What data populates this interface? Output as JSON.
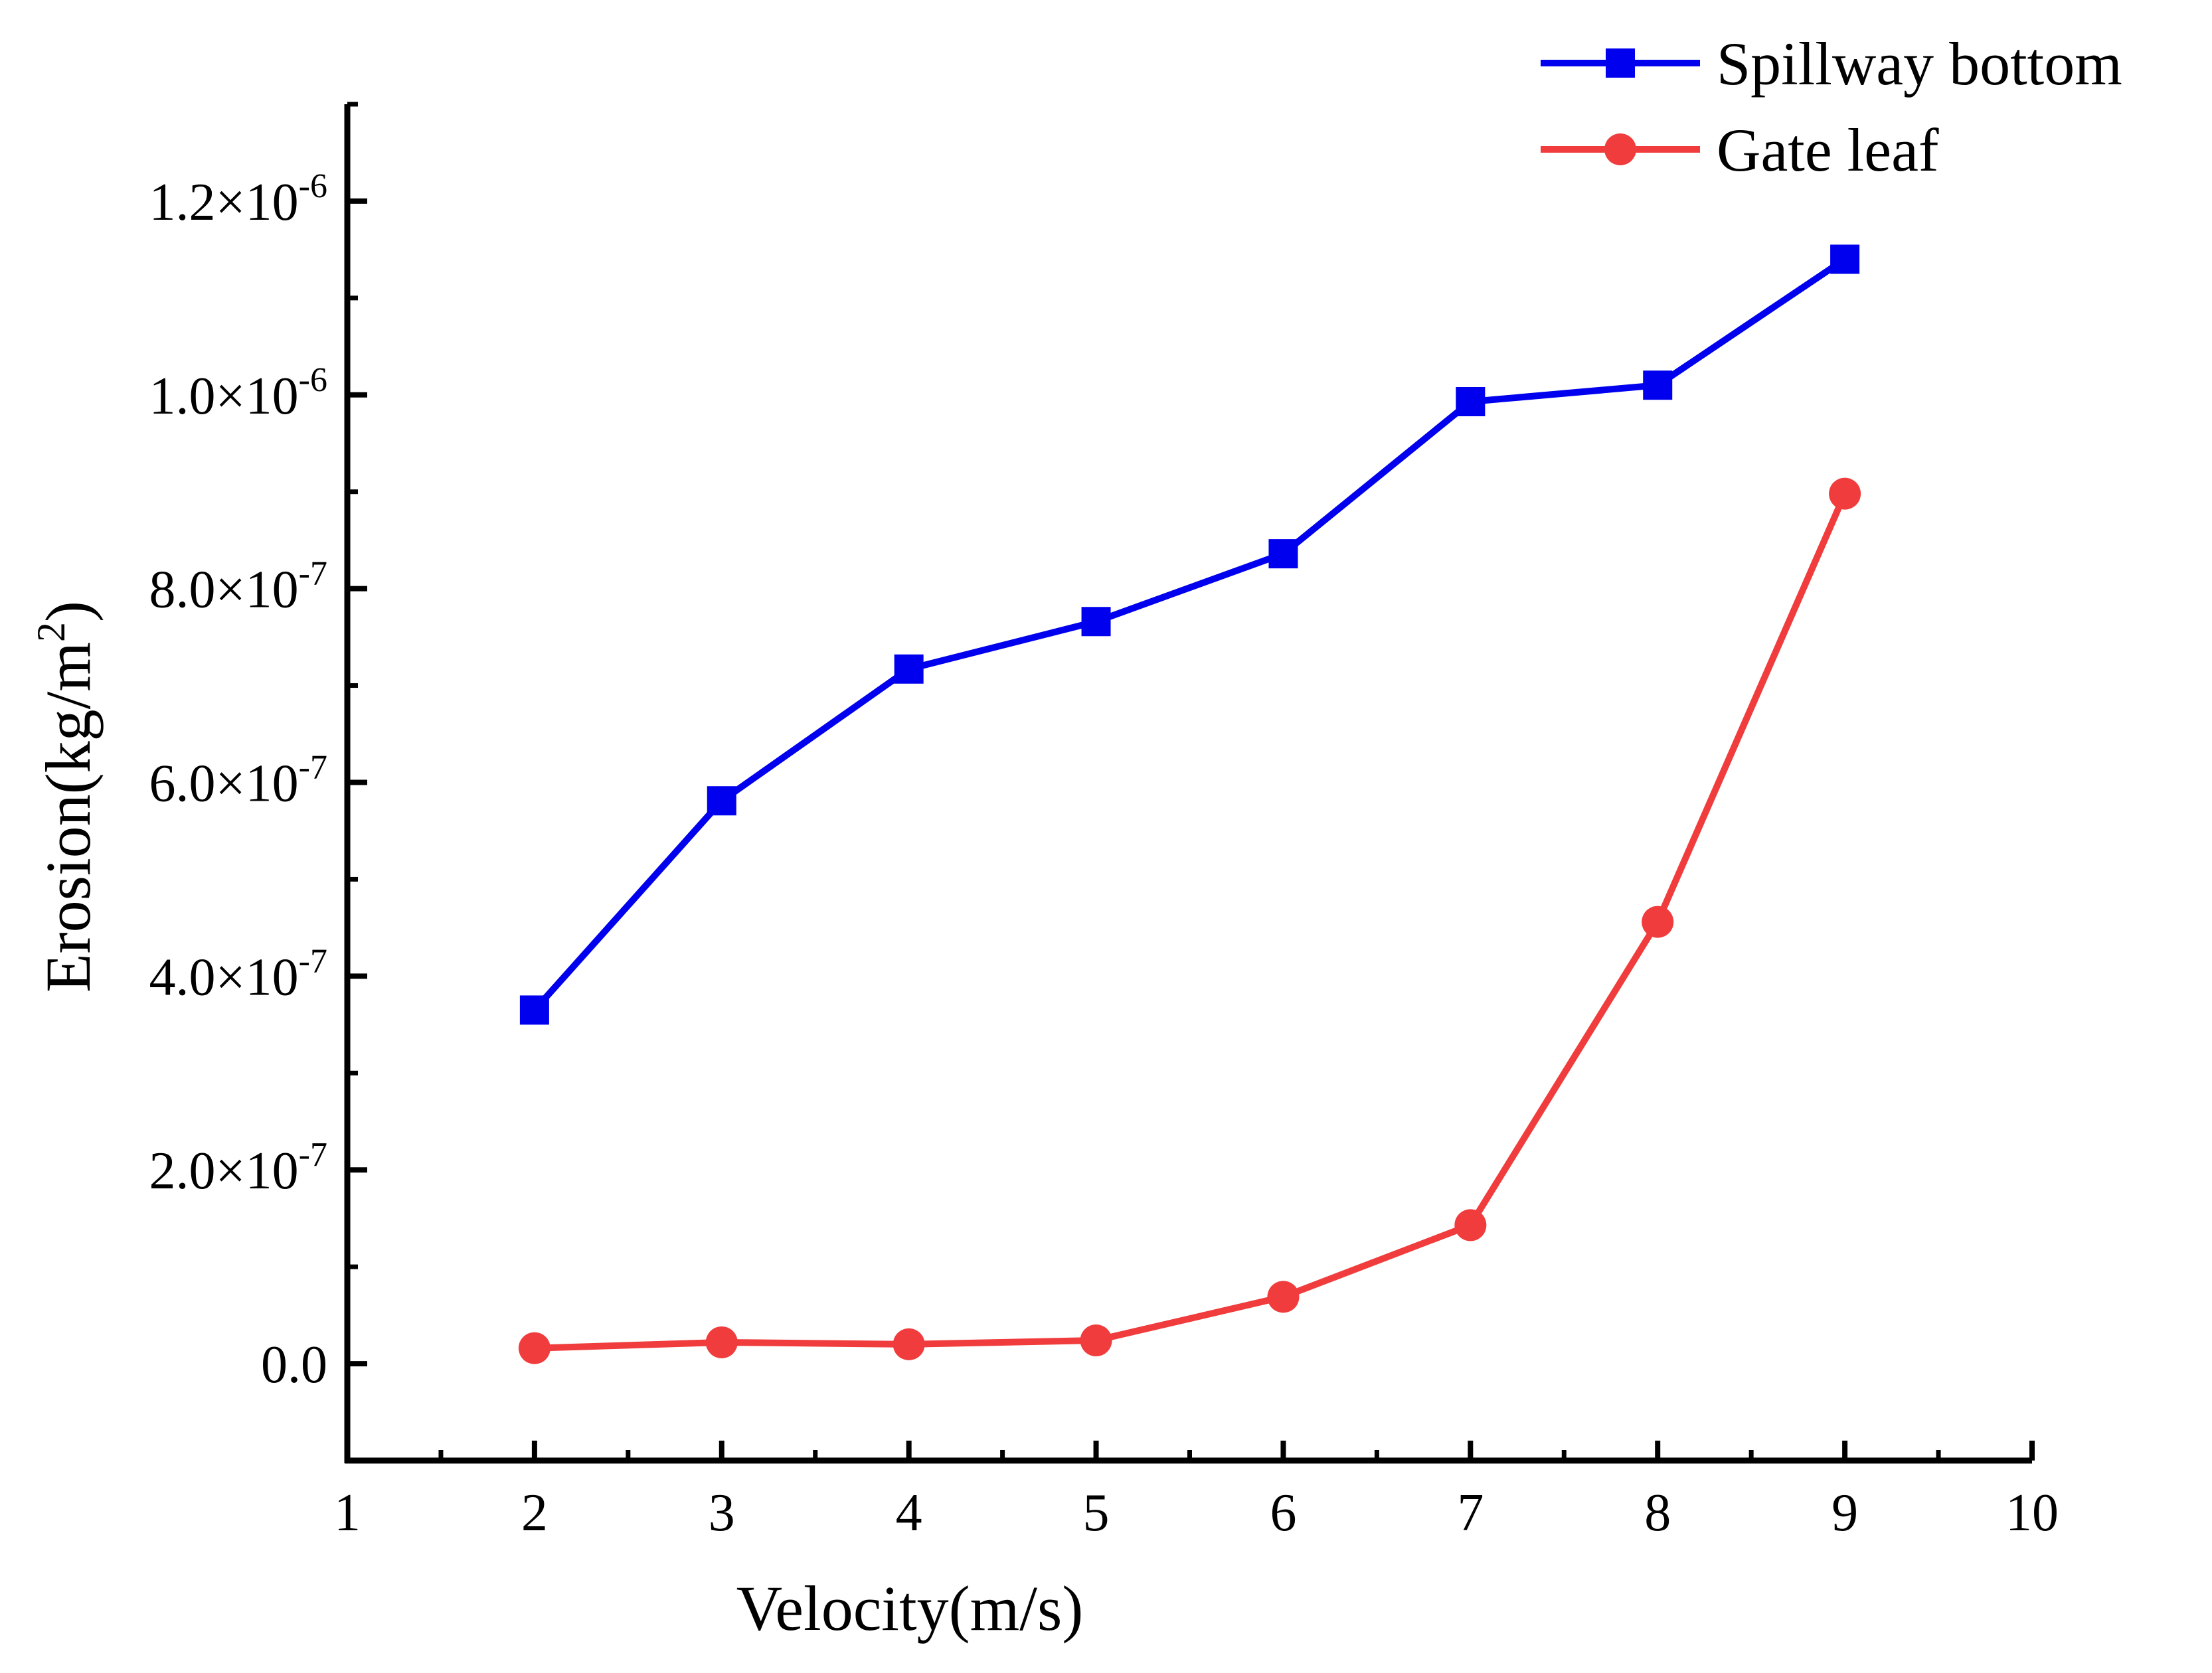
{
  "chart_data": {
    "type": "line",
    "title": "",
    "xlabel": "Velocity(m/s)",
    "ylabel": "Erosion(kg/m²)",
    "ylabel_base": "Erosion(kg/m",
    "ylabel_sup": "2",
    "ylabel_end": ")",
    "xlim": [
      1,
      10
    ],
    "ylim": [
      -1e-07,
      1.3e-06
    ],
    "grid": false,
    "legend_position": "top-right",
    "x_ticks": [
      {
        "value": 1,
        "label": "1"
      },
      {
        "value": 2,
        "label": "2"
      },
      {
        "value": 3,
        "label": "3"
      },
      {
        "value": 4,
        "label": "4"
      },
      {
        "value": 5,
        "label": "5"
      },
      {
        "value": 6,
        "label": "6"
      },
      {
        "value": 7,
        "label": "7"
      },
      {
        "value": 8,
        "label": "8"
      },
      {
        "value": 9,
        "label": "9"
      },
      {
        "value": 10,
        "label": "10"
      }
    ],
    "y_ticks": [
      {
        "value": 0,
        "base": "0.0",
        "exp": ""
      },
      {
        "value": 2e-07,
        "base": "2.0×10",
        "exp": "-7"
      },
      {
        "value": 4e-07,
        "base": "4.0×10",
        "exp": "-7"
      },
      {
        "value": 6e-07,
        "base": "6.0×10",
        "exp": "-7"
      },
      {
        "value": 8e-07,
        "base": "8.0×10",
        "exp": "-7"
      },
      {
        "value": 1e-06,
        "base": "1.0×10",
        "exp": "-6"
      },
      {
        "value": 1.2e-06,
        "base": "1.2×10",
        "exp": "-6"
      }
    ],
    "series": [
      {
        "name": "Spillway bottom",
        "color": "#0000ee",
        "marker": "square",
        "x": [
          2,
          3,
          4,
          5,
          6,
          7,
          8,
          9
        ],
        "values": [
          3.65e-07,
          5.81e-07,
          7.17e-07,
          7.66e-07,
          8.36e-07,
          9.93e-07,
          1.01e-06,
          1.14e-06
        ]
      },
      {
        "name": "Gate leaf",
        "color": "#f03c3c",
        "marker": "circle",
        "x": [
          2,
          3,
          4,
          5,
          6,
          7,
          8,
          9
        ],
        "values": [
          1.6e-08,
          2.2e-08,
          2e-08,
          2.4e-08,
          6.9e-08,
          1.43e-07,
          4.56e-07,
          8.98e-07
        ]
      }
    ]
  }
}
